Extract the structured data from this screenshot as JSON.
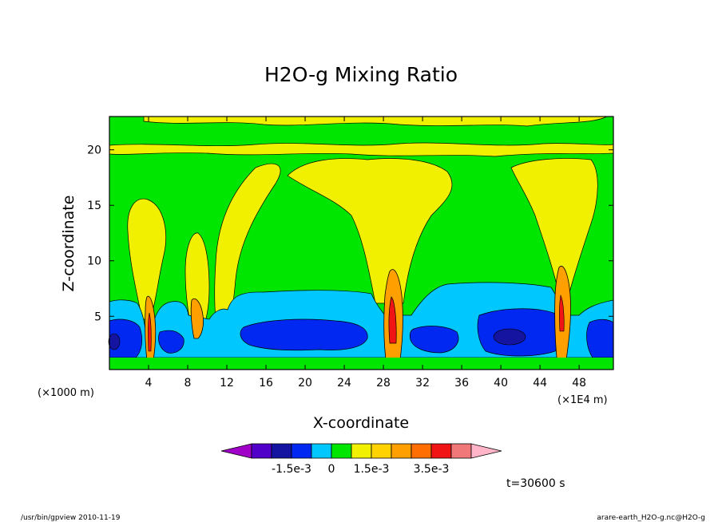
{
  "chart_data": {
    "type": "heatmap",
    "title": "H2O-g Mixing Ratio",
    "xlabel": "X-coordinate",
    "ylabel": "Z-coordinate",
    "xaxis": {
      "ticks": [
        4,
        8,
        12,
        16,
        20,
        24,
        28,
        32,
        36,
        40,
        44,
        48
      ],
      "range": [
        0,
        51.5
      ],
      "unit_left": "(×1000 m)",
      "unit_right": "(×1E4 m)"
    },
    "yaxis": {
      "ticks": [
        5,
        10,
        15,
        20
      ],
      "range": [
        0.2,
        23
      ]
    },
    "colorbar": {
      "colors": [
        "#a000c8",
        "#5000c8",
        "#1414a0",
        "#0028f0",
        "#00c8ff",
        "#00e600",
        "#f0f000",
        "#ffd200",
        "#ffa000",
        "#ff6e00",
        "#f01414",
        "#f07878",
        "#ffb4c8"
      ],
      "tick_labels": [
        "-1.5e-3",
        "0",
        "1.5e-3",
        "3.5e-3"
      ]
    },
    "time_label": "t=30600 s",
    "contour_field": {
      "background_level": "#00e600",
      "upper_band_level": "#f0f000",
      "lower_moist_layer_top_z": 6.5,
      "lower_moist_layer_color": "#00c8ff",
      "dry_pockets_color": "#0028f0",
      "convective_columns_x": [
        4.5,
        9,
        29,
        46
      ]
    }
  },
  "footer": {
    "left": "/usr/bin/gpview   2010-11-19",
    "right": "arare-earth_H2O-g.nc@H2O-g"
  }
}
